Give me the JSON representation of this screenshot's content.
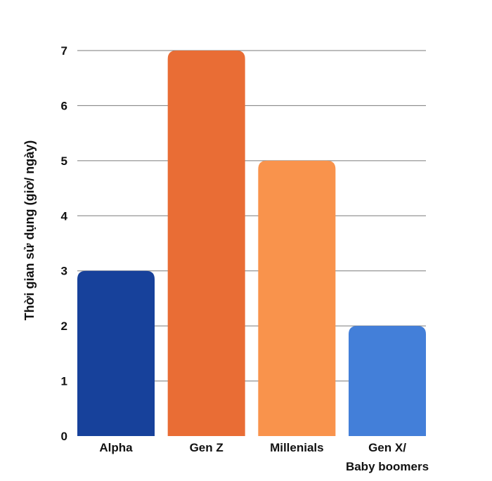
{
  "chart_data": {
    "type": "bar",
    "categories": [
      "Alpha",
      "Gen Z",
      "Millenials",
      "Gen X/\nBaby boomers"
    ],
    "values": [
      3,
      7,
      5,
      2
    ],
    "colors": [
      "#17419b",
      "#e96d35",
      "#f9934c",
      "#437fd9"
    ],
    "ylabel": "Thời gian sử dụng (giờ/ ngày)",
    "xlabel": "",
    "ylim": [
      0,
      7
    ],
    "yticks": [
      0,
      1,
      2,
      3,
      4,
      5,
      6,
      7
    ],
    "grid": true,
    "legend": "none"
  }
}
